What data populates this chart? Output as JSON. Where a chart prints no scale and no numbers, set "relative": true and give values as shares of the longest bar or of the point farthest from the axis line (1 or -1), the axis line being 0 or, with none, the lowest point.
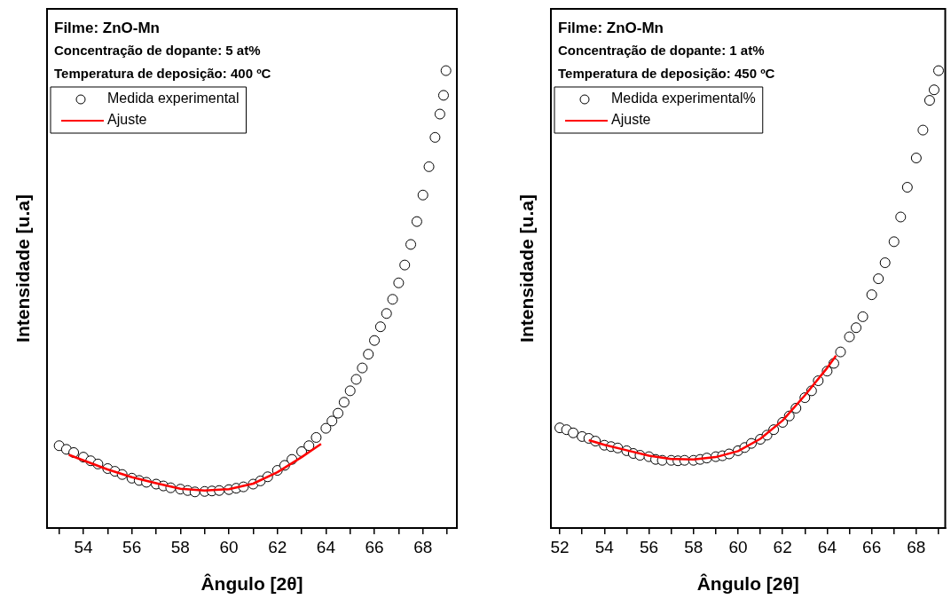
{
  "chart_data": [
    {
      "type": "scatter",
      "xlabel": "Ângulo [2θ]",
      "ylabel": "Intensidade [u.a]",
      "annotations": [
        "Filme: ZnO-Mn",
        "Concentração de dopante: 5 at%",
        "Temperatura de deposição: 400 ºC"
      ],
      "relative": true,
      "legend": "top left",
      "tick_labels": "x",
      "xlim": [
        52.5,
        69.4
      ],
      "xticks": [
        {
          "value": 53,
          "label": null
        },
        54,
        {
          "value": 55,
          "label": null
        },
        56,
        {
          "value": 57,
          "label": null
        },
        58,
        {
          "value": 59,
          "label": null
        },
        60,
        {
          "value": 61,
          "label": null
        },
        62,
        {
          "value": 63,
          "label": null
        },
        64,
        {
          "value": 65,
          "label": null
        },
        66,
        {
          "value": 67,
          "label": null
        },
        68,
        {
          "value": 69,
          "label": null
        }
      ],
      "series": [
        {
          "name": "Medida experimental",
          "marker": "circle",
          "color": "#000000",
          "x": [
            53,
            53.3,
            53.6,
            54,
            54.3,
            54.6,
            55,
            55.3,
            55.6,
            56,
            56.3,
            56.6,
            57,
            57.3,
            57.6,
            58,
            58.3,
            58.6,
            59,
            59.3,
            59.6,
            60,
            60.3,
            60.6,
            61,
            61.3,
            61.6,
            62,
            62.3,
            62.6,
            63,
            63.3,
            63.6,
            64,
            64.25,
            64.5,
            64.75,
            65,
            65.25,
            65.5,
            65.75,
            66,
            66.25,
            66.5,
            66.75,
            67,
            67.25,
            67.5,
            67.75,
            68,
            68.25,
            68.5,
            68.7,
            68.85,
            68.95
          ],
          "values": [
            0.18,
            0.172,
            0.165,
            0.155,
            0.147,
            0.14,
            0.13,
            0.124,
            0.117,
            0.109,
            0.104,
            0.1,
            0.096,
            0.092,
            0.088,
            0.085,
            0.082,
            0.079,
            0.08,
            0.081,
            0.082,
            0.084,
            0.087,
            0.09,
            0.096,
            0.103,
            0.112,
            0.126,
            0.137,
            0.15,
            0.167,
            0.18,
            0.198,
            0.218,
            0.234,
            0.251,
            0.275,
            0.3,
            0.325,
            0.35,
            0.38,
            0.41,
            0.44,
            0.469,
            0.5,
            0.536,
            0.575,
            0.62,
            0.67,
            0.728,
            0.79,
            0.854,
            0.905,
            0.946,
            1
          ]
        },
        {
          "name": "Ajuste",
          "type": "line",
          "marker": "none",
          "color": "#ff0000",
          "x": [
            53.4,
            54,
            55,
            56,
            57,
            58,
            59,
            60,
            61,
            62,
            63,
            63.8
          ],
          "values": [
            0.16,
            0.148,
            0.128,
            0.111,
            0.098,
            0.086,
            0.082,
            0.085,
            0.097,
            0.122,
            0.155,
            0.184
          ]
        }
      ]
    },
    {
      "type": "scatter",
      "xlabel": "Ângulo [2θ]",
      "ylabel": "Intensidade [u.a]",
      "annotations": [
        "Filme: ZnO-Mn",
        "Concentração de dopante: 1 at%",
        "Temperatura de deposição: 450 ºC"
      ],
      "relative": true,
      "legend": "top left",
      "tick_labels": "x",
      "xlim": [
        51.6,
        69.3
      ],
      "xticks": [
        52,
        {
          "value": 53,
          "label": null
        },
        54,
        {
          "value": 55,
          "label": null
        },
        56,
        {
          "value": 57,
          "label": null
        },
        58,
        {
          "value": 59,
          "label": null
        },
        60,
        {
          "value": 61,
          "label": null
        },
        62,
        {
          "value": 63,
          "label": null
        },
        64,
        {
          "value": 65,
          "label": null
        },
        66,
        {
          "value": 67,
          "label": null
        },
        68,
        {
          "value": 69,
          "label": null
        }
      ],
      "series": [
        {
          "name": "Medida experimental%",
          "marker": "circle",
          "color": "#000000",
          "x": [
            52,
            52.3,
            52.6,
            53,
            53.3,
            53.6,
            54,
            54.3,
            54.6,
            55,
            55.3,
            55.6,
            56,
            56.3,
            56.6,
            57,
            57.3,
            57.6,
            58,
            58.3,
            58.6,
            59,
            59.3,
            59.6,
            60,
            60.3,
            60.6,
            61,
            61.3,
            61.6,
            62,
            62.3,
            62.6,
            63,
            63.3,
            63.6,
            64,
            64.3,
            64.6,
            65,
            65.3,
            65.6,
            66,
            66.3,
            66.6,
            67,
            67.3,
            67.6,
            68,
            68.3,
            68.6,
            68.8,
            69
          ],
          "values": [
            0.219,
            0.215,
            0.208,
            0.2,
            0.196,
            0.19,
            0.181,
            0.178,
            0.175,
            0.169,
            0.163,
            0.159,
            0.156,
            0.15,
            0.148,
            0.148,
            0.147,
            0.148,
            0.148,
            0.15,
            0.153,
            0.156,
            0.158,
            0.162,
            0.169,
            0.176,
            0.185,
            0.194,
            0.203,
            0.215,
            0.231,
            0.245,
            0.262,
            0.285,
            0.3,
            0.322,
            0.343,
            0.36,
            0.385,
            0.418,
            0.438,
            0.462,
            0.51,
            0.545,
            0.58,
            0.626,
            0.68,
            0.745,
            0.809,
            0.87,
            0.935,
            0.958,
            1
          ]
        },
        {
          "name": "Ajuste",
          "type": "line",
          "marker": "none",
          "color": "#ff0000",
          "x": [
            53.3,
            54,
            55,
            56,
            57,
            58,
            59,
            60,
            61,
            62,
            63,
            64,
            64.4
          ],
          "values": [
            0.192,
            0.182,
            0.17,
            0.158,
            0.151,
            0.15,
            0.155,
            0.168,
            0.195,
            0.235,
            0.29,
            0.35,
            0.377
          ]
        }
      ]
    }
  ]
}
